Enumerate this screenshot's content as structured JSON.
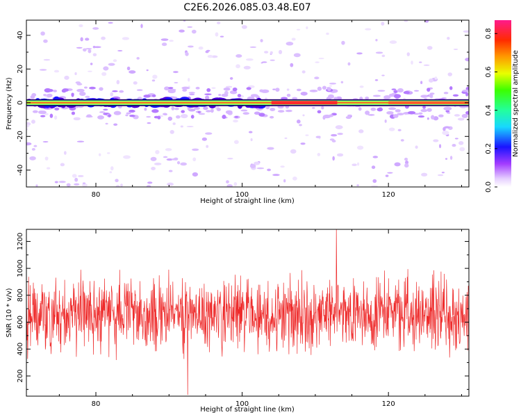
{
  "title": "C2E6.2026.085.03.48.E07",
  "colors": {
    "snr_line": "#ee2b2b",
    "band_core": "#ff2a2a",
    "band_edge": "#39f1b6",
    "band_outline": "#0b0030"
  },
  "chart_data": [
    {
      "id": "spectrogram",
      "type": "heatmap",
      "xlabel": "Height of straight line (km)",
      "ylabel": "Frequency (Hz)",
      "xlim": [
        70.5,
        131
      ],
      "ylim": [
        -50,
        49
      ],
      "xticks": [
        80,
        100,
        120
      ],
      "yticks": [
        -40,
        -20,
        0,
        20,
        40
      ],
      "ytick_labels": [
        "-40",
        "-20",
        "0",
        "20",
        "40"
      ],
      "colorbar": {
        "label": "Normalized spectral amplitude",
        "range": [
          0.0,
          0.87
        ],
        "ticks": [
          0.0,
          0.2,
          0.4,
          0.6,
          0.8
        ],
        "tick_labels": [
          "0.0",
          "0.2",
          "0.4",
          "0.6",
          "0.8"
        ]
      },
      "notes": "Strong narrow band centered at 0 Hz across all heights; amplitude near maximum above ~104 km and at 110-113 km; sparse weak speckle elsewhere."
    },
    {
      "id": "snr",
      "type": "line",
      "xlabel": "Height of straight line (km)",
      "ylabel": "SNR (10 * v/v)",
      "xlim": [
        70.5,
        131
      ],
      "ylim": [
        50,
        1290
      ],
      "xticks": [
        80,
        100,
        120
      ],
      "yticks": [
        200,
        400,
        600,
        800,
        1000,
        1200
      ],
      "ytick_labels": [
        "200",
        "400",
        "600",
        "800",
        "1000",
        "1200"
      ],
      "series": [
        {
          "name": "SNR",
          "mean": 660,
          "spread": 140,
          "min": 80,
          "max": 1290,
          "samples": 1400
        }
      ]
    }
  ]
}
